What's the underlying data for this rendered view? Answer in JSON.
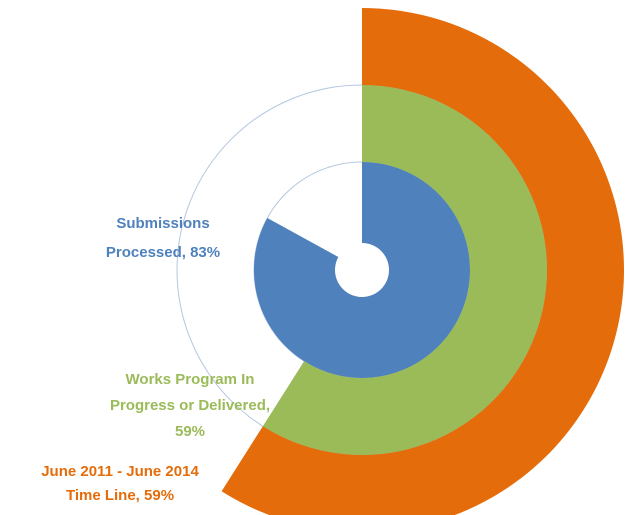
{
  "chart_data": {
    "type": "radial-bar",
    "series": [
      {
        "name": "Submissions Processed",
        "value": 83,
        "color": "#4f81bd",
        "label_lines": [
          "Submissions",
          "Processed, 83%"
        ]
      },
      {
        "name": "Works Program In Progress or Delivered",
        "value": 59,
        "color": "#9bbb59",
        "label_lines": [
          "Works Program In",
          "Progress or Delivered,",
          "59%"
        ]
      },
      {
        "name": "June 2011 - June 2014 Time Line",
        "value": 59,
        "color": "#e46c0a",
        "label_lines": [
          "June 2011 - June 2014",
          "Time Line, 59%"
        ]
      }
    ],
    "ylim": [
      0,
      100
    ]
  }
}
